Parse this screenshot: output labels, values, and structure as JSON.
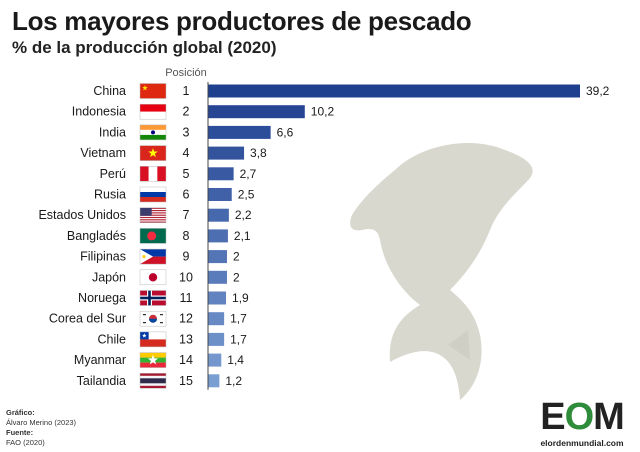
{
  "title": "Los mayores productores de pescado",
  "subtitle": "% de la producción global (2020)",
  "chart_data": {
    "type": "bar",
    "orientation": "horizontal",
    "rank_header": "Posición",
    "categories": [
      "China",
      "Indonesia",
      "India",
      "Vietnam",
      "Perú",
      "Rusia",
      "Estados Unidos",
      "Bangladés",
      "Filipinas",
      "Japón",
      "Noruega",
      "Corea del Sur",
      "Chile",
      "Myanmar",
      "Tailandia"
    ],
    "ranks": [
      "1",
      "2",
      "3",
      "4",
      "5",
      "6",
      "7",
      "8",
      "9",
      "10",
      "11",
      "12",
      "13",
      "14",
      "15"
    ],
    "values": [
      39.2,
      10.2,
      6.6,
      3.8,
      2.7,
      2.5,
      2.2,
      2.1,
      2,
      2,
      1.9,
      1.7,
      1.7,
      1.4,
      1.2
    ],
    "value_labels": [
      "39,2",
      "10,2",
      "6,6",
      "3,8",
      "2,7",
      "2,5",
      "2,2",
      "2,1",
      "2",
      "2",
      "1,9",
      "1,7",
      "1,7",
      "1,4",
      "1,2"
    ],
    "flags": [
      "china-flag-icon",
      "indonesia-flag-icon",
      "india-flag-icon",
      "vietnam-flag-icon",
      "peru-flag-icon",
      "russia-flag-icon",
      "usa-flag-icon",
      "bangladesh-flag-icon",
      "philippines-flag-icon",
      "japan-flag-icon",
      "norway-flag-icon",
      "south-korea-flag-icon",
      "chile-flag-icon",
      "myanmar-flag-icon",
      "thailand-flag-icon"
    ],
    "xlim": [
      0,
      39.2
    ],
    "bar_color_start": "#1f3f8f",
    "bar_color_end": "#7b9ed2",
    "grid": false
  },
  "background_icon": "fish-silhouette-icon",
  "credits": {
    "graphic_label": "Gráfico:",
    "graphic_author": "Álvaro Merino (2023)",
    "source_label": "Fuente:",
    "source_value": "FAO (2020)"
  },
  "logo": {
    "mark_e": "E",
    "mark_o": "O",
    "mark_m": "M",
    "url": "elordenmundial.com"
  }
}
